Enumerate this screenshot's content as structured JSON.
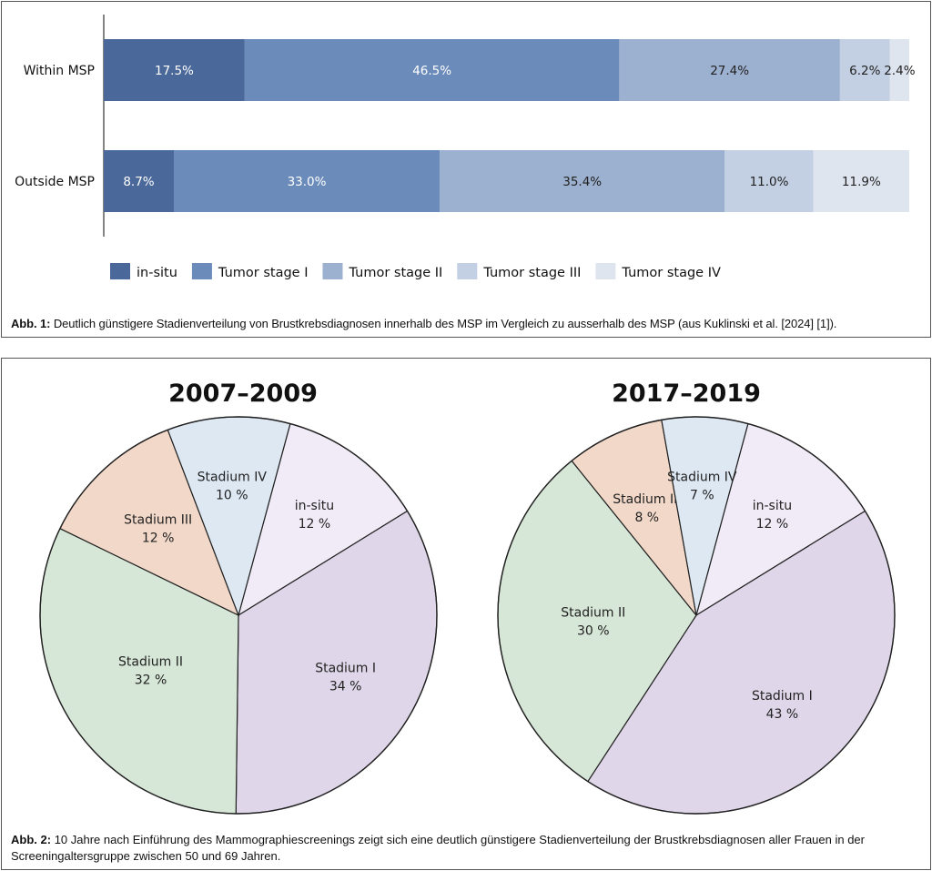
{
  "figure1": {
    "caption_label": "Abb. 1:",
    "caption_text": "Deutlich günstigere Stadienverteilung von Brustkrebsdiagnosen innerhalb des MSP im Vergleich zu ausserhalb des MSP (aus Kuklinski et al. [2024] [1]).",
    "legend": [
      "in-situ",
      "Tumor stage I",
      "Tumor stage II",
      "Tumor stage III",
      "Tumor stage IV"
    ]
  },
  "figure2": {
    "caption_label": "Abb. 2:",
    "caption_text": "10 Jahre nach Einführung des Mammographiescreenings zeigt sich eine deutlich günstigere Stadienverteilung der Brustkrebsdiagnosen aller Frauen in der Screeningaltersgruppe zwischen 50 und 69 Jahren."
  },
  "colors": {
    "bar": [
      "#4a6899",
      "#6b8cba",
      "#9cb0cf",
      "#c3cfe2",
      "#dfe5ef"
    ],
    "bar_text_light": "#ffffff",
    "bar_text_dark": "#222222",
    "pie_in_situ": "#f0ebf6",
    "pie_stadium_1": "#dfd6e9",
    "pie_stadium_2": "#d6e6d7",
    "pie_stadium_3": "#f2d8c8",
    "pie_stadium_4": "#dde8f3"
  },
  "chart_data": [
    {
      "type": "bar",
      "orientation": "horizontal",
      "stacked": true,
      "categories": [
        "Within MSP",
        "Outside MSP"
      ],
      "series": [
        {
          "name": "in-situ",
          "values": [
            17.5,
            8.7
          ],
          "labels": [
            "17.5%",
            "8.7%"
          ]
        },
        {
          "name": "Tumor stage I",
          "values": [
            46.5,
            33.0
          ],
          "labels": [
            "46.5%",
            "33.0%"
          ]
        },
        {
          "name": "Tumor stage II",
          "values": [
            27.4,
            35.4
          ],
          "labels": [
            "27.4%",
            "35.4%"
          ]
        },
        {
          "name": "Tumor stage III",
          "values": [
            6.2,
            11.0
          ],
          "labels": [
            "6.2%",
            "11.0%"
          ]
        },
        {
          "name": "Tumor stage IV",
          "values": [
            2.4,
            11.9
          ],
          "labels": [
            "2.4%",
            "11.9%"
          ]
        }
      ],
      "xlim": [
        0,
        100
      ],
      "legend_position": "bottom"
    },
    {
      "type": "pie",
      "title": "2007–2009",
      "slices": [
        {
          "name": "in-situ",
          "value": 12,
          "label": "12 %"
        },
        {
          "name": "Stadium I",
          "value": 34,
          "label": "34 %"
        },
        {
          "name": "Stadium II",
          "value": 32,
          "label": "32 %"
        },
        {
          "name": "Stadium III",
          "value": 12,
          "label": "12 %"
        },
        {
          "name": "Stadium IV",
          "value": 10,
          "label": "10 %"
        }
      ]
    },
    {
      "type": "pie",
      "title": "2017–2019",
      "slices": [
        {
          "name": "in-situ",
          "value": 12,
          "label": "12 %"
        },
        {
          "name": "Stadium I",
          "value": 43,
          "label": "43 %"
        },
        {
          "name": "Stadium II",
          "value": 30,
          "label": "30 %"
        },
        {
          "name": "Stadium III",
          "value": 8,
          "label": "8 %"
        },
        {
          "name": "Stadium IV",
          "value": 7,
          "label": "7 %"
        }
      ]
    }
  ]
}
